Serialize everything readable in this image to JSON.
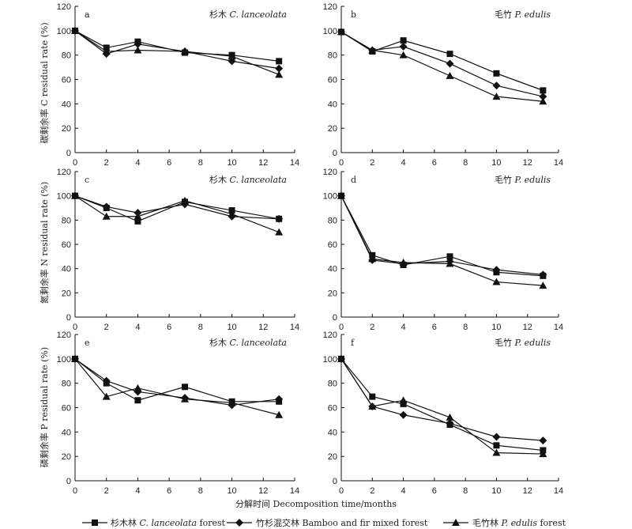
{
  "figure": {
    "xlabel": "分解时间 Decomposition time/months",
    "legend": [
      {
        "zh": "杉木林",
        "latin": "C. lanceolata",
        "en": "forest",
        "marker": "square"
      },
      {
        "zh": "竹杉混交林",
        "latin": "",
        "en": "Bamboo and fir mixed forest",
        "marker": "diamond"
      },
      {
        "zh": "毛竹林",
        "latin": "P. edulis",
        "en": "forest",
        "marker": "triangle"
      }
    ],
    "row_ylabels": [
      {
        "zh": "碳剩余率",
        "en": "C residual rate (%)"
      },
      {
        "zh": "氮剩余率",
        "en": "N residual rate (%)"
      },
      {
        "zh": "磷剩余率",
        "en": "P residual rate (%)"
      }
    ]
  },
  "chart_data": [
    {
      "panel": "a",
      "type": "line",
      "title_zh": "杉木",
      "title_latin": "C. lanceolata",
      "x": [
        0,
        2,
        4,
        7,
        10,
        13
      ],
      "xlim": [
        0,
        14
      ],
      "ylim": [
        0,
        120
      ],
      "yticks": [
        0,
        20,
        40,
        60,
        80,
        100,
        120
      ],
      "series": [
        {
          "name": "杉木林 C. lanceolata forest",
          "marker": "square",
          "values": [
            100,
            86,
            91,
            82,
            80,
            75
          ]
        },
        {
          "name": "竹杉混交林 Bamboo and fir mixed forest",
          "marker": "diamond",
          "values": [
            100,
            81,
            89,
            83,
            75,
            69
          ]
        },
        {
          "name": "毛竹林 P. edulis forest",
          "marker": "triangle",
          "values": [
            100,
            83,
            84,
            83,
            79,
            64
          ]
        }
      ]
    },
    {
      "panel": "b",
      "type": "line",
      "title_zh": "毛竹",
      "title_latin": "P. edulis",
      "x": [
        0,
        2,
        4,
        7,
        10,
        13
      ],
      "xlim": [
        0,
        14
      ],
      "ylim": [
        0,
        120
      ],
      "yticks": [
        0,
        20,
        40,
        60,
        80,
        100,
        120
      ],
      "series": [
        {
          "name": "杉木林 C. lanceolata forest",
          "marker": "square",
          "values": [
            99,
            83,
            92,
            81,
            65,
            51
          ]
        },
        {
          "name": "竹杉混交林 Bamboo and fir mixed forest",
          "marker": "diamond",
          "values": [
            99,
            84,
            87,
            73,
            55,
            46
          ]
        },
        {
          "name": "毛竹林 P. edulis forest",
          "marker": "triangle",
          "values": [
            99,
            84,
            80,
            63,
            46,
            42
          ]
        }
      ]
    },
    {
      "panel": "c",
      "type": "line",
      "title_zh": "杉木",
      "title_latin": "C. lanceolata",
      "x": [
        0,
        2,
        4,
        7,
        10,
        13
      ],
      "xlim": [
        0,
        14
      ],
      "ylim": [
        0,
        120
      ],
      "yticks": [
        0,
        20,
        40,
        60,
        80,
        100,
        120
      ],
      "series": [
        {
          "name": "杉木林 C. lanceolata forest",
          "marker": "square",
          "values": [
            100,
            90,
            79,
            95,
            88,
            81
          ]
        },
        {
          "name": "竹杉混交林 Bamboo and fir mixed forest",
          "marker": "diamond",
          "values": [
            100,
            91,
            86,
            93,
            83,
            81
          ]
        },
        {
          "name": "毛竹林 P. edulis forest",
          "marker": "triangle",
          "values": [
            100,
            83,
            83,
            96,
            85,
            70
          ]
        }
      ]
    },
    {
      "panel": "d",
      "type": "line",
      "title_zh": "毛竹",
      "title_latin": "P. edulis",
      "x": [
        0,
        2,
        4,
        7,
        10,
        13
      ],
      "xlim": [
        0,
        14
      ],
      "ylim": [
        0,
        120
      ],
      "yticks": [
        0,
        20,
        40,
        60,
        80,
        100,
        120
      ],
      "series": [
        {
          "name": "杉木林 C. lanceolata forest",
          "marker": "square",
          "values": [
            100,
            51,
            43,
            50,
            37,
            34
          ]
        },
        {
          "name": "竹杉混交林 Bamboo and fir mixed forest",
          "marker": "diamond",
          "values": [
            100,
            47,
            44,
            46,
            39,
            35
          ]
        },
        {
          "name": "毛竹林 P. edulis forest",
          "marker": "triangle",
          "values": [
            100,
            48,
            45,
            44,
            29,
            26
          ]
        }
      ]
    },
    {
      "panel": "e",
      "type": "line",
      "title_zh": "杉木",
      "title_latin": "C. lanceolata",
      "x": [
        0,
        2,
        4,
        7,
        10,
        13
      ],
      "xlim": [
        0,
        14
      ],
      "ylim": [
        0,
        120
      ],
      "yticks": [
        0,
        20,
        40,
        60,
        80,
        100,
        120
      ],
      "series": [
        {
          "name": "杉木林 C. lanceolata forest",
          "marker": "square",
          "values": [
            100,
            80,
            66,
            77,
            65,
            65
          ]
        },
        {
          "name": "竹杉混交林 Bamboo and fir mixed forest",
          "marker": "diamond",
          "values": [
            100,
            82,
            73,
            68,
            62,
            67
          ]
        },
        {
          "name": "毛竹林 P. edulis forest",
          "marker": "triangle",
          "values": [
            100,
            69,
            76,
            67,
            64,
            54
          ]
        }
      ]
    },
    {
      "panel": "f",
      "type": "line",
      "title_zh": "毛竹",
      "title_latin": "P. edulis",
      "x": [
        0,
        2,
        4,
        7,
        10,
        13
      ],
      "xlim": [
        0,
        14
      ],
      "ylim": [
        0,
        120
      ],
      "yticks": [
        0,
        20,
        40,
        60,
        80,
        100,
        120
      ],
      "series": [
        {
          "name": "杉木林 C. lanceolata forest",
          "marker": "square",
          "values": [
            100,
            69,
            63,
            46,
            29,
            25
          ]
        },
        {
          "name": "竹杉混交林 Bamboo and fir mixed forest",
          "marker": "diamond",
          "values": [
            100,
            61,
            54,
            47,
            36,
            33
          ]
        },
        {
          "name": "毛竹林 P. edulis forest",
          "marker": "triangle",
          "values": [
            100,
            61,
            66,
            52,
            23,
            22
          ]
        }
      ]
    }
  ]
}
